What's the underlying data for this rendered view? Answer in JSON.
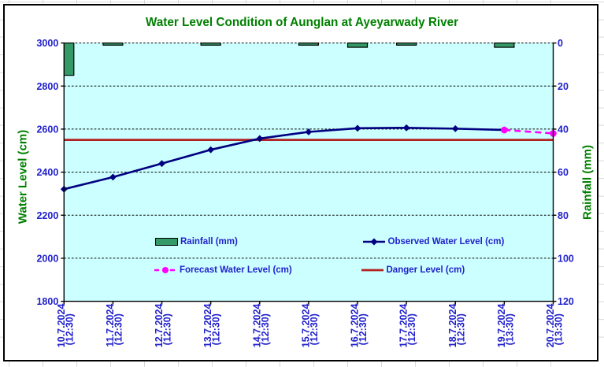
{
  "chart_data": {
    "type": "line",
    "title": "Water Level Condition of Aunglan at Ayeyarwady River",
    "categories": [
      "10.7.2024",
      "11.7.2024",
      "12.7.2024",
      "13.7.2024",
      "14.7.2024",
      "15.7.2024",
      "16.7.2024",
      "17.7.2024",
      "18.7.2024",
      "19.7.2024",
      "20.7.2024"
    ],
    "category_times": [
      "(12:30)",
      "(12:30)",
      "(12:30)",
      "(12:30)",
      "(12:30)",
      "(12:30)",
      "(12:30)",
      "(12:30)",
      "(12:30)",
      "(13:30)",
      "(13:30)"
    ],
    "left_axis": {
      "title": "Water Level (cm)",
      "min": 1800,
      "max": 3000,
      "step": 200,
      "ticks": [
        "3000",
        "2800",
        "2600",
        "2400",
        "2200",
        "2000",
        "1800"
      ]
    },
    "right_axis": {
      "title": "Rainfall (mm)",
      "min": 0,
      "max": 120,
      "step": 20,
      "inverted": true,
      "ticks": [
        "0",
        "20",
        "40",
        "60",
        "80",
        "100",
        "120"
      ]
    },
    "series": [
      {
        "name": "Rainfall (mm)",
        "type": "bar",
        "axis": "right",
        "color": "#339966",
        "border_color": "#000000",
        "values": [
          15,
          1,
          0,
          1,
          0,
          1,
          2,
          1,
          0,
          2,
          0
        ]
      },
      {
        "name": "Observed Water Level (cm)",
        "type": "line",
        "axis": "left",
        "color": "#000080",
        "marker": "diamond",
        "values": [
          2321,
          2377,
          2440,
          2504,
          2556,
          2587,
          2604,
          2606,
          2602,
          2596,
          null
        ]
      },
      {
        "name": "Forecast Water Level (cm)",
        "type": "line",
        "axis": "left",
        "color": "#ff00ff",
        "dashed": true,
        "marker": "circle",
        "values": [
          null,
          null,
          null,
          null,
          null,
          null,
          null,
          null,
          null,
          2596,
          2580
        ]
      },
      {
        "name": "Danger Level (cm)",
        "type": "hline",
        "axis": "left",
        "color": "#b22222",
        "value": 2550
      }
    ],
    "legend_position": "inside-lower-center",
    "grid": true,
    "plot_bg": "#ccffff",
    "title_color": "#008000",
    "axis_text_color": "#2121cc"
  }
}
